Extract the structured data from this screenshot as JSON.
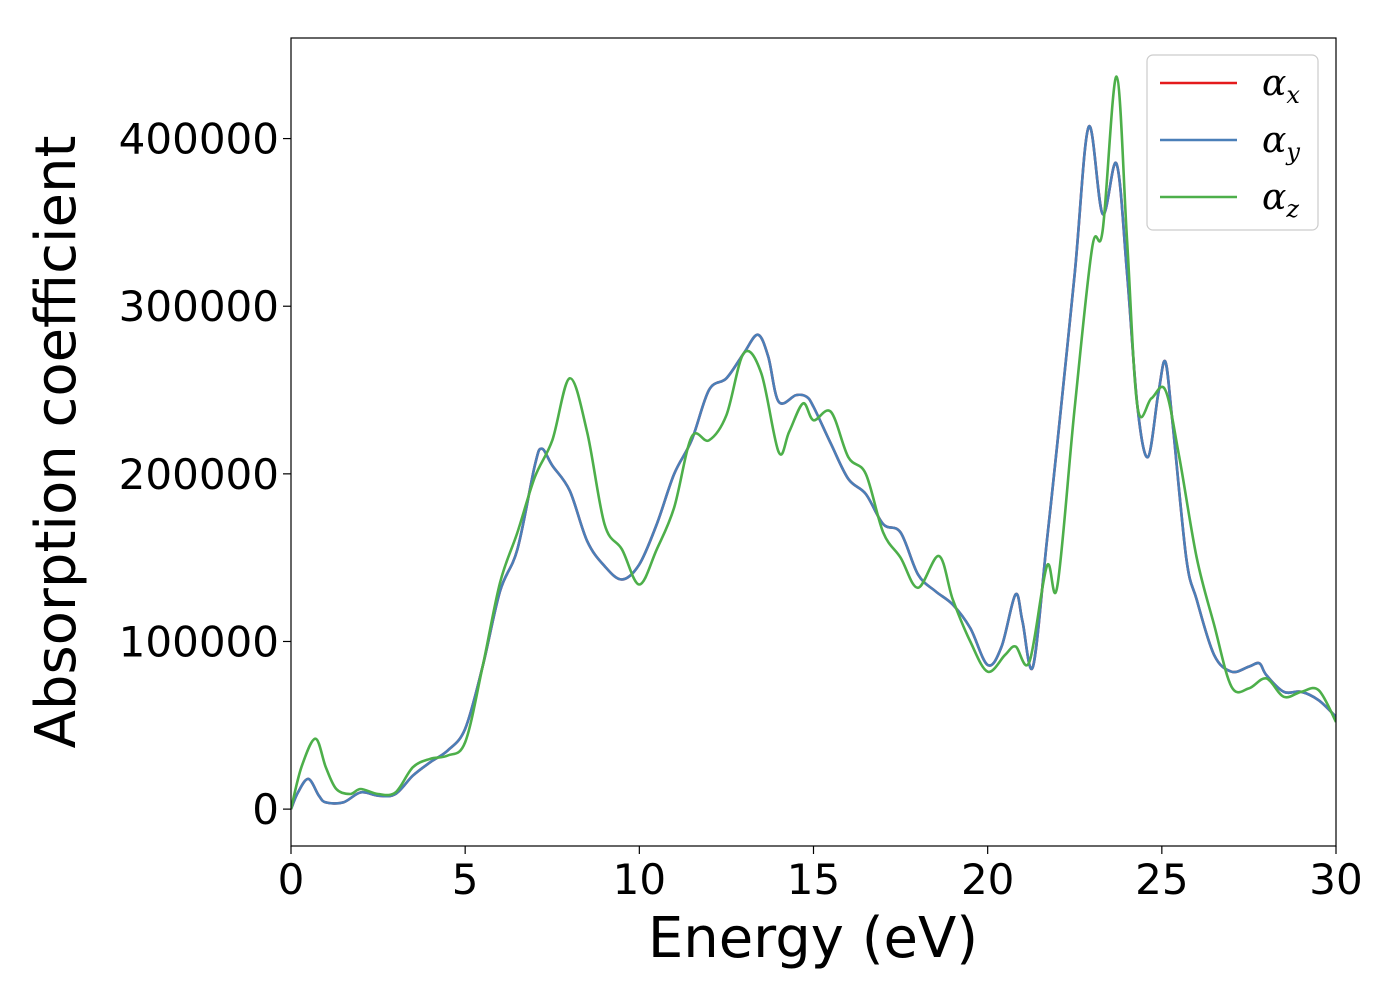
{
  "chart_data": {
    "type": "line",
    "title": "",
    "xlabel": "Energy (eV)",
    "ylabel": "Absorption coefficient",
    "xlim": [
      0,
      30
    ],
    "ylim": [
      -22000,
      460000
    ],
    "xticks": [
      0,
      5,
      10,
      15,
      20,
      25,
      30
    ],
    "xtick_labels": [
      "0",
      "5",
      "10",
      "15",
      "20",
      "25",
      "30"
    ],
    "yticks": [
      0,
      100000,
      200000,
      300000,
      400000
    ],
    "ytick_labels": [
      "0",
      "100000",
      "200000",
      "300000",
      "400000"
    ],
    "grid": false,
    "legend_position": "top-right",
    "series": [
      {
        "name": "α_x",
        "legend_base": "α",
        "legend_sub": "x",
        "color": "#e41a1c",
        "x": [
          0,
          0.2,
          0.5,
          0.8,
          1.0,
          1.5,
          2.0,
          2.5,
          3.0,
          3.5,
          4.0,
          4.5,
          5.0,
          5.5,
          6.0,
          6.5,
          7.0,
          7.2,
          7.5,
          8.0,
          8.5,
          9.0,
          9.5,
          10.0,
          10.5,
          11.0,
          11.5,
          12.0,
          12.5,
          13.0,
          13.4,
          13.7,
          14.0,
          14.5,
          14.8,
          15.0,
          15.5,
          16.0,
          16.5,
          17.0,
          17.5,
          18.0,
          18.5,
          19.0,
          19.5,
          20.0,
          20.4,
          20.8,
          21.0,
          21.3,
          21.7,
          22.0,
          22.5,
          22.9,
          23.3,
          23.7,
          24.0,
          24.3,
          24.6,
          24.9,
          25.1,
          25.3,
          25.7,
          26.0,
          26.5,
          27.0,
          27.5,
          27.8,
          28.0,
          28.5,
          29.0,
          29.5,
          30.0
        ],
        "y": [
          0,
          10000,
          18000,
          8000,
          4000,
          4000,
          10000,
          8000,
          9000,
          20000,
          28000,
          35000,
          48000,
          85000,
          130000,
          155000,
          205000,
          215000,
          205000,
          190000,
          160000,
          145000,
          137000,
          146000,
          170000,
          200000,
          220000,
          250000,
          257000,
          272000,
          283000,
          270000,
          243000,
          247000,
          246000,
          240000,
          218000,
          197000,
          188000,
          170000,
          165000,
          140000,
          130000,
          122000,
          108000,
          86000,
          97000,
          128000,
          112000,
          85000,
          160000,
          218000,
          320000,
          407000,
          355000,
          385000,
          320000,
          240000,
          210000,
          248000,
          267000,
          232000,
          150000,
          125000,
          92000,
          82000,
          85000,
          87000,
          80000,
          70000,
          70000,
          65000,
          55000
        ]
      },
      {
        "name": "α_y",
        "legend_base": "α",
        "legend_sub": "y",
        "color": "#4a7fb8",
        "x": [
          0,
          0.2,
          0.5,
          0.8,
          1.0,
          1.5,
          2.0,
          2.5,
          3.0,
          3.5,
          4.0,
          4.5,
          5.0,
          5.5,
          6.0,
          6.5,
          7.0,
          7.2,
          7.5,
          8.0,
          8.5,
          9.0,
          9.5,
          10.0,
          10.5,
          11.0,
          11.5,
          12.0,
          12.5,
          13.0,
          13.4,
          13.7,
          14.0,
          14.5,
          14.8,
          15.0,
          15.5,
          16.0,
          16.5,
          17.0,
          17.5,
          18.0,
          18.5,
          19.0,
          19.5,
          20.0,
          20.4,
          20.8,
          21.0,
          21.3,
          21.7,
          22.0,
          22.5,
          22.9,
          23.3,
          23.7,
          24.0,
          24.3,
          24.6,
          24.9,
          25.1,
          25.3,
          25.7,
          26.0,
          26.5,
          27.0,
          27.5,
          27.8,
          28.0,
          28.5,
          29.0,
          29.5,
          30.0
        ],
        "y": [
          0,
          10000,
          18000,
          8000,
          4000,
          4000,
          10000,
          8000,
          9000,
          20000,
          28000,
          35000,
          48000,
          85000,
          130000,
          155000,
          205000,
          215000,
          205000,
          190000,
          160000,
          145000,
          137000,
          146000,
          170000,
          200000,
          220000,
          250000,
          257000,
          272000,
          283000,
          270000,
          243000,
          247000,
          246000,
          240000,
          218000,
          197000,
          188000,
          170000,
          165000,
          140000,
          130000,
          122000,
          108000,
          86000,
          97000,
          128000,
          112000,
          85000,
          160000,
          218000,
          320000,
          407000,
          355000,
          385000,
          320000,
          240000,
          210000,
          248000,
          267000,
          232000,
          150000,
          125000,
          92000,
          82000,
          85000,
          87000,
          80000,
          70000,
          70000,
          65000,
          55000
        ]
      },
      {
        "name": "α_z",
        "legend_base": "α",
        "legend_sub": "z",
        "color": "#4daf4a",
        "x": [
          0,
          0.3,
          0.7,
          1.0,
          1.3,
          1.7,
          2.0,
          2.5,
          3.0,
          3.5,
          4.0,
          4.5,
          5.0,
          5.5,
          6.0,
          6.5,
          7.0,
          7.5,
          8.0,
          8.5,
          9.0,
          9.5,
          10.0,
          10.5,
          11.0,
          11.5,
          12.0,
          12.5,
          13.0,
          13.5,
          14.0,
          14.3,
          14.7,
          15.0,
          15.5,
          16.0,
          16.5,
          17.0,
          17.5,
          18.0,
          18.6,
          19.0,
          19.5,
          20.0,
          20.5,
          20.8,
          21.2,
          21.7,
          22.0,
          22.5,
          23.0,
          23.3,
          23.7,
          24.0,
          24.3,
          24.7,
          25.1,
          25.5,
          26.0,
          26.5,
          27.0,
          27.5,
          28.0,
          28.5,
          29.0,
          29.5,
          30.0
        ],
        "y": [
          0,
          25000,
          42000,
          25000,
          12000,
          9000,
          12000,
          9000,
          10000,
          25000,
          30000,
          32000,
          40000,
          85000,
          135000,
          165000,
          198000,
          220000,
          257000,
          225000,
          170000,
          155000,
          134000,
          155000,
          180000,
          222000,
          220000,
          235000,
          272000,
          260000,
          213000,
          225000,
          242000,
          232000,
          237000,
          210000,
          200000,
          165000,
          150000,
          132000,
          151000,
          125000,
          100000,
          82000,
          92000,
          97000,
          88000,
          145000,
          133000,
          240000,
          335000,
          345000,
          437000,
          340000,
          240000,
          245000,
          250000,
          210000,
          150000,
          110000,
          73000,
          72000,
          78000,
          67000,
          70000,
          71000,
          52000
        ]
      }
    ]
  }
}
